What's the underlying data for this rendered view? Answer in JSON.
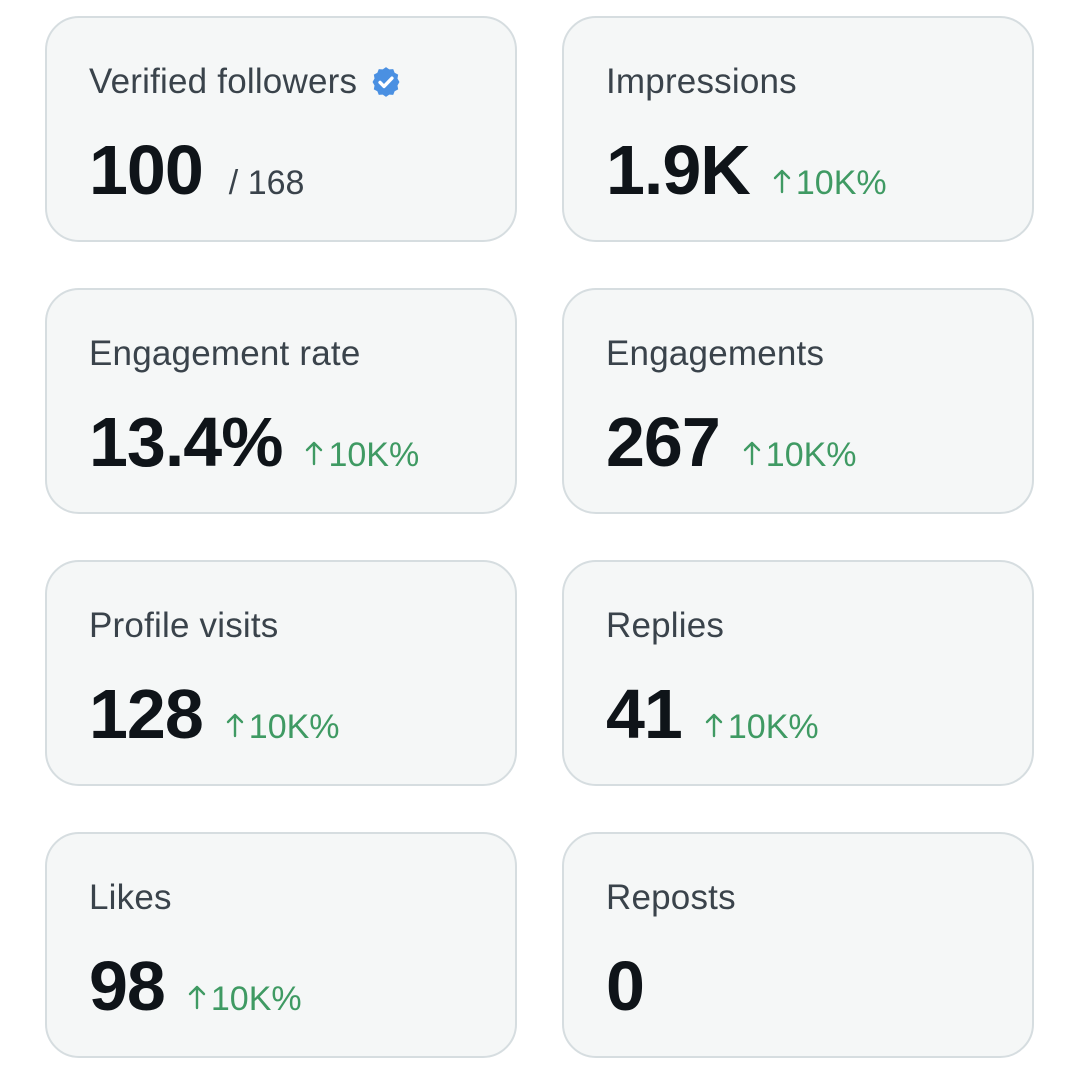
{
  "cards": [
    {
      "label": "Verified followers",
      "value": "100",
      "suffix": "/ 168"
    },
    {
      "label": "Impressions",
      "value": "1.9K",
      "change": "10K%"
    },
    {
      "label": "Engagement rate",
      "value": "13.4%",
      "change": "10K%"
    },
    {
      "label": "Engagements",
      "value": "267",
      "change": "10K%"
    },
    {
      "label": "Profile visits",
      "value": "128",
      "change": "10K%"
    },
    {
      "label": "Replies",
      "value": "41",
      "change": "10K%"
    },
    {
      "label": "Likes",
      "value": "98",
      "change": "10K%"
    },
    {
      "label": "Reposts",
      "value": "0"
    }
  ],
  "colors": {
    "card_background": "#f5f7f7",
    "card_border": "#d6dde0",
    "value_text": "#0f1419",
    "label_text": "#3a434b",
    "increase_green": "#3f9a63",
    "verified_blue": "#4a90e2"
  },
  "icons": {
    "verified": "verified-badge-icon",
    "increase": "arrow-up-icon"
  }
}
